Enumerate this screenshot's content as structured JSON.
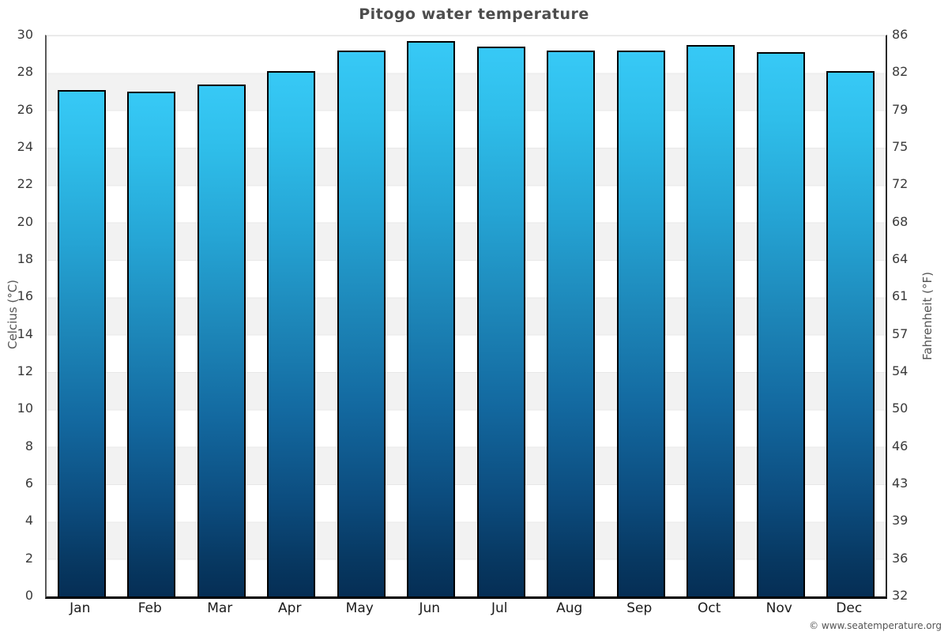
{
  "page": {
    "title": "Pitogo water temperature",
    "watermark": "© www.seatemperature.org"
  },
  "colors": {
    "bar_top": "#37c9f6",
    "bar_mid": "#1d86b8",
    "bar_bottom": "#052e55",
    "bar_border": "#000000",
    "band_gray": "#f2f2f2",
    "band_white": "#ffffff",
    "gridline": "#e8e8e8",
    "baseline": "#000000",
    "title_text": "#4d4d4d",
    "tick_text": "#3a3a3a",
    "axis_unit_text": "#555555"
  },
  "chart_data": {
    "type": "bar",
    "title": "Pitogo water temperature",
    "categories": [
      "Jan",
      "Feb",
      "Mar",
      "Apr",
      "May",
      "Jun",
      "Jul",
      "Aug",
      "Sep",
      "Oct",
      "Nov",
      "Dec"
    ],
    "values": [
      27.1,
      27.0,
      27.4,
      28.1,
      29.2,
      29.7,
      29.4,
      29.2,
      29.2,
      29.5,
      29.1,
      28.1
    ],
    "series_unit": "°C",
    "xlabel": "",
    "ylabel_left": "Celcius (°C)",
    "ylabel_right": "Fahrenheit (°F)",
    "ylim": [
      0,
      30
    ],
    "yticks_celsius": [
      30,
      28,
      26,
      24,
      22,
      20,
      18,
      16,
      14,
      12,
      10,
      8,
      6,
      4,
      2,
      0
    ],
    "yticks_fahrenheit": [
      86,
      82,
      79,
      75,
      72,
      68,
      64,
      61,
      57,
      54,
      50,
      46,
      43,
      39,
      36,
      32
    ],
    "grid": "horizontal-bands-alternating",
    "legend": "none"
  }
}
